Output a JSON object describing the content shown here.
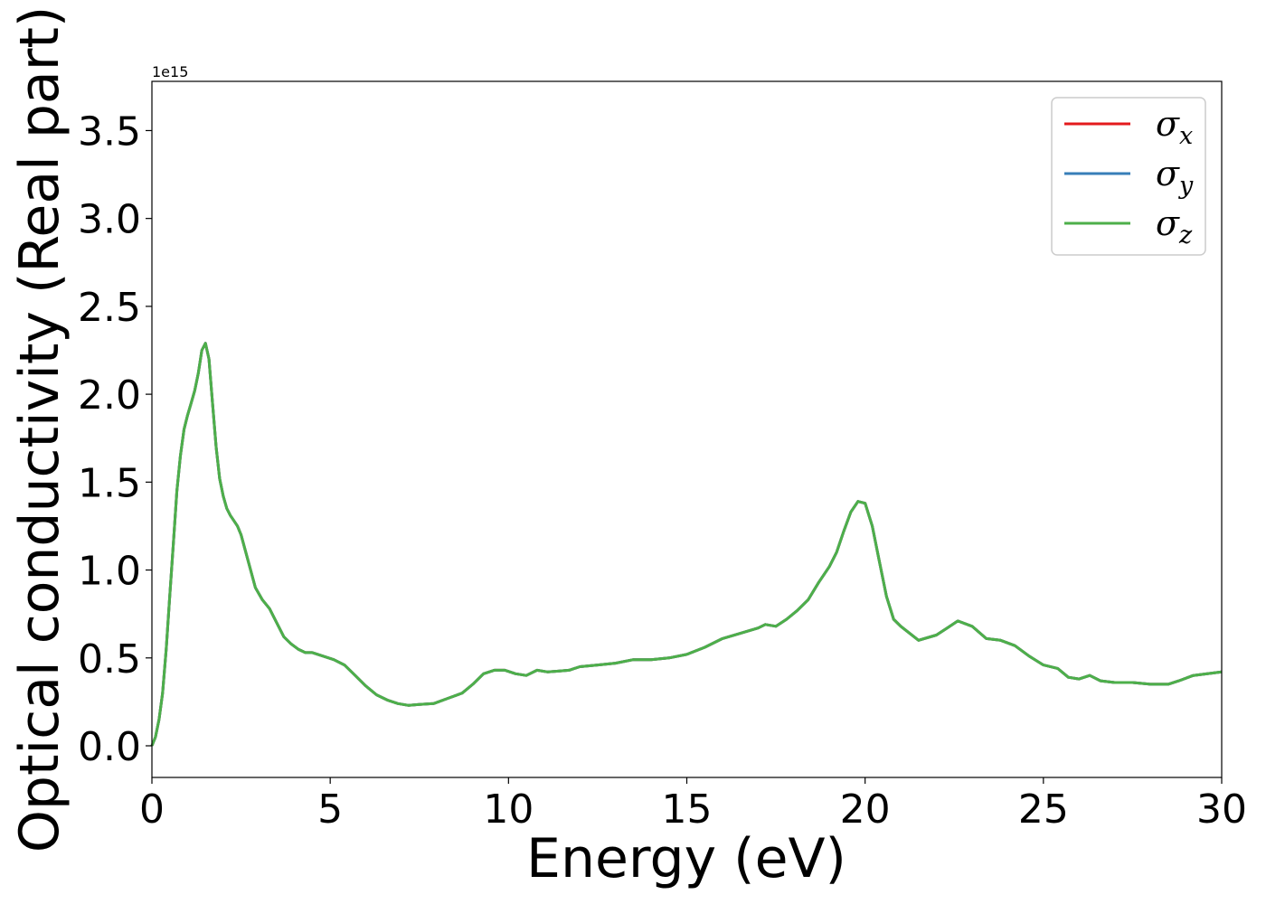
{
  "chart_data": {
    "type": "line",
    "xlabel": "Energy (eV)",
    "ylabel": "Optical conductivity (Real part)",
    "y_offset_text": "1e15",
    "y_scale_factor": 1000000000000000.0,
    "xlim": [
      0,
      30
    ],
    "ylim": [
      -0.18,
      3.78
    ],
    "xticks": [
      0,
      5,
      10,
      15,
      20,
      25,
      30
    ],
    "xtick_labels": [
      "0",
      "5",
      "10",
      "15",
      "20",
      "25",
      "30"
    ],
    "yticks": [
      0.0,
      0.5,
      1.0,
      1.5,
      2.0,
      2.5,
      3.0,
      3.5
    ],
    "ytick_labels": [
      "0.0",
      "0.5",
      "1.0",
      "1.5",
      "2.0",
      "2.5",
      "3.0",
      "3.5"
    ],
    "grid": false,
    "legend_position": "top-right",
    "legend_entries": [
      {
        "symbol": "σ",
        "sub": "x",
        "color": "#e41a1c"
      },
      {
        "symbol": "σ",
        "sub": "y",
        "color": "#377eb8"
      },
      {
        "symbol": "σ",
        "sub": "z",
        "color": "#4daf4a"
      }
    ],
    "x": [
      0,
      0.1,
      0.2,
      0.3,
      0.4,
      0.5,
      0.6,
      0.7,
      0.8,
      0.9,
      1.0,
      1.1,
      1.2,
      1.3,
      1.4,
      1.5,
      1.6,
      1.7,
      1.8,
      1.9,
      2.0,
      2.1,
      2.2,
      2.3,
      2.4,
      2.5,
      2.7,
      2.9,
      3.1,
      3.3,
      3.5,
      3.7,
      3.9,
      4.1,
      4.3,
      4.5,
      4.8,
      5.1,
      5.4,
      5.7,
      6.0,
      6.3,
      6.6,
      6.9,
      7.2,
      7.5,
      7.9,
      8.3,
      8.7,
      9.0,
      9.3,
      9.6,
      9.9,
      10.2,
      10.5,
      10.8,
      11.1,
      11.4,
      11.7,
      12.0,
      12.5,
      13.0,
      13.5,
      14.0,
      14.5,
      15.0,
      15.5,
      16.0,
      16.5,
      17.0,
      17.2,
      17.5,
      17.8,
      18.1,
      18.4,
      18.7,
      19.0,
      19.2,
      19.4,
      19.6,
      19.8,
      20.0,
      20.2,
      20.4,
      20.6,
      20.8,
      21.0,
      21.5,
      22.0,
      22.3,
      22.6,
      23.0,
      23.4,
      23.8,
      24.2,
      24.6,
      25.0,
      25.4,
      25.7,
      26.0,
      26.3,
      26.6,
      27.0,
      27.5,
      28.0,
      28.5,
      28.8,
      29.2,
      29.6,
      30.0
    ],
    "series": [
      {
        "name": "σx",
        "color": "#e41a1c",
        "values": [
          0.0,
          0.05,
          0.15,
          0.3,
          0.55,
          0.85,
          1.15,
          1.45,
          1.65,
          1.8,
          1.88,
          1.95,
          2.02,
          2.12,
          2.25,
          2.29,
          2.2,
          1.95,
          1.7,
          1.52,
          1.42,
          1.35,
          1.31,
          1.28,
          1.25,
          1.2,
          1.05,
          0.9,
          0.83,
          0.78,
          0.7,
          0.62,
          0.58,
          0.55,
          0.53,
          0.53,
          0.51,
          0.49,
          0.46,
          0.4,
          0.34,
          0.29,
          0.26,
          0.24,
          0.23,
          0.235,
          0.24,
          0.27,
          0.3,
          0.35,
          0.41,
          0.43,
          0.43,
          0.41,
          0.4,
          0.43,
          0.42,
          0.425,
          0.43,
          0.45,
          0.46,
          0.47,
          0.49,
          0.49,
          0.5,
          0.52,
          0.56,
          0.61,
          0.64,
          0.67,
          0.69,
          0.68,
          0.72,
          0.77,
          0.83,
          0.93,
          1.02,
          1.1,
          1.22,
          1.33,
          1.39,
          1.38,
          1.25,
          1.05,
          0.85,
          0.72,
          0.68,
          0.6,
          0.63,
          0.67,
          0.71,
          0.68,
          0.61,
          0.6,
          0.57,
          0.51,
          0.46,
          0.44,
          0.39,
          0.38,
          0.4,
          0.37,
          0.36,
          0.36,
          0.35,
          0.35,
          0.37,
          0.4,
          0.41,
          0.42
        ]
      },
      {
        "name": "σy",
        "color": "#377eb8",
        "values": [
          0.0,
          0.05,
          0.15,
          0.3,
          0.55,
          0.85,
          1.15,
          1.45,
          1.65,
          1.8,
          1.88,
          1.95,
          2.02,
          2.12,
          2.25,
          2.29,
          2.2,
          1.95,
          1.7,
          1.52,
          1.42,
          1.35,
          1.31,
          1.28,
          1.25,
          1.2,
          1.05,
          0.9,
          0.83,
          0.78,
          0.7,
          0.62,
          0.58,
          0.55,
          0.53,
          0.53,
          0.51,
          0.49,
          0.46,
          0.4,
          0.34,
          0.29,
          0.26,
          0.24,
          0.23,
          0.235,
          0.24,
          0.27,
          0.3,
          0.35,
          0.41,
          0.43,
          0.43,
          0.41,
          0.4,
          0.43,
          0.42,
          0.425,
          0.43,
          0.45,
          0.46,
          0.47,
          0.49,
          0.49,
          0.5,
          0.52,
          0.56,
          0.61,
          0.64,
          0.67,
          0.69,
          0.68,
          0.72,
          0.77,
          0.83,
          0.93,
          1.02,
          1.1,
          1.22,
          1.33,
          1.39,
          1.38,
          1.25,
          1.05,
          0.85,
          0.72,
          0.68,
          0.6,
          0.63,
          0.67,
          0.71,
          0.68,
          0.61,
          0.6,
          0.57,
          0.51,
          0.46,
          0.44,
          0.39,
          0.38,
          0.4,
          0.37,
          0.36,
          0.36,
          0.35,
          0.35,
          0.37,
          0.4,
          0.41,
          0.42
        ]
      },
      {
        "name": "σz",
        "color": "#4daf4a",
        "values": [
          0.0,
          0.05,
          0.15,
          0.3,
          0.55,
          0.85,
          1.15,
          1.45,
          1.65,
          1.8,
          1.88,
          1.95,
          2.02,
          2.12,
          2.25,
          2.29,
          2.2,
          1.95,
          1.7,
          1.52,
          1.42,
          1.35,
          1.31,
          1.28,
          1.25,
          1.2,
          1.05,
          0.9,
          0.83,
          0.78,
          0.7,
          0.62,
          0.58,
          0.55,
          0.53,
          0.53,
          0.51,
          0.49,
          0.46,
          0.4,
          0.34,
          0.29,
          0.26,
          0.24,
          0.23,
          0.235,
          0.24,
          0.27,
          0.3,
          0.35,
          0.41,
          0.43,
          0.43,
          0.41,
          0.4,
          0.43,
          0.42,
          0.425,
          0.43,
          0.45,
          0.46,
          0.47,
          0.49,
          0.49,
          0.5,
          0.52,
          0.56,
          0.61,
          0.64,
          0.67,
          0.69,
          0.68,
          0.72,
          0.77,
          0.83,
          0.93,
          1.02,
          1.1,
          1.22,
          1.33,
          1.39,
          1.38,
          1.25,
          1.05,
          0.85,
          0.72,
          0.68,
          0.6,
          0.63,
          0.67,
          0.71,
          0.68,
          0.61,
          0.6,
          0.57,
          0.51,
          0.46,
          0.44,
          0.39,
          0.38,
          0.4,
          0.37,
          0.36,
          0.36,
          0.35,
          0.35,
          0.37,
          0.4,
          0.41,
          0.42
        ]
      }
    ]
  }
}
